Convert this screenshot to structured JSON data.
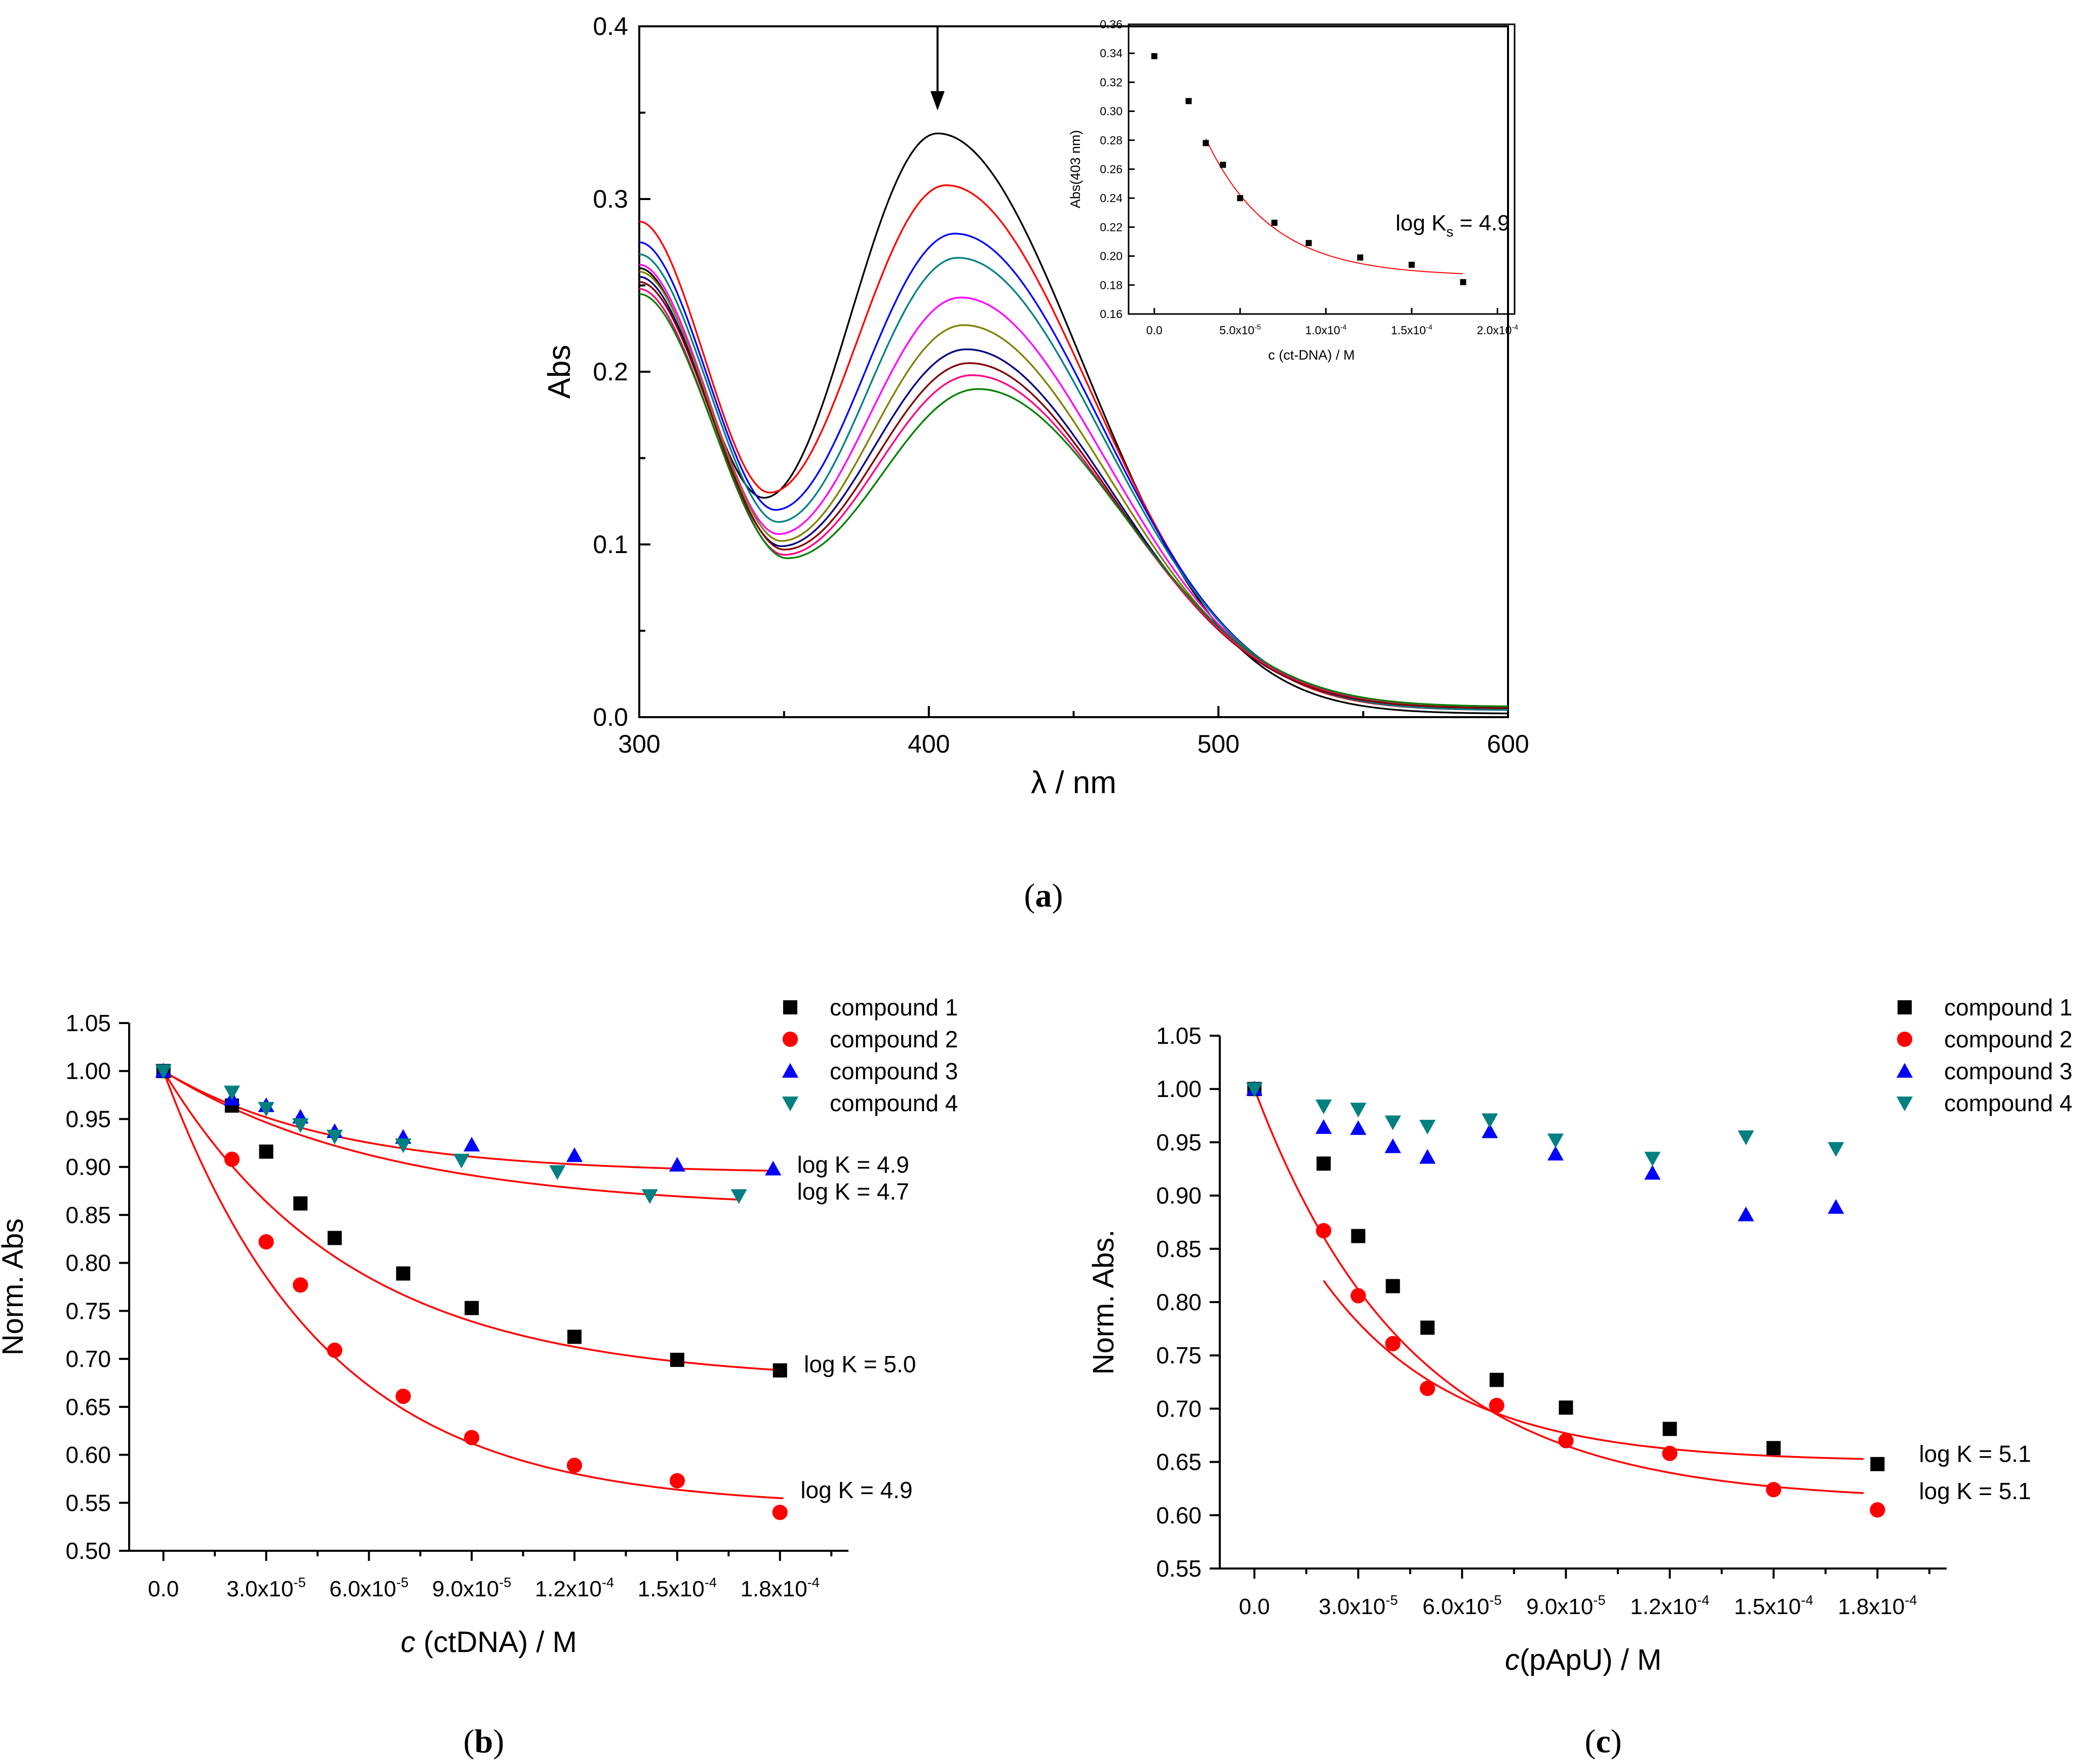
{
  "figure": {
    "caption_a": "(a)",
    "caption_b": "(b)",
    "caption_c": "(c)",
    "caption_letters": [
      "a",
      "b",
      "c"
    ]
  },
  "chart_data": [
    {
      "id": "a",
      "type": "line",
      "title": "",
      "xlabel": "λ / nm",
      "ylabel": "Abs",
      "xlim": [
        300,
        600
      ],
      "ylim": [
        0.0,
        0.4
      ],
      "xticks": [
        300,
        400,
        500,
        600
      ],
      "xtick_labels": [
        "300",
        "400",
        "500",
        "600"
      ],
      "yticks": [
        0.0,
        0.1,
        0.2,
        0.3,
        0.4
      ],
      "ytick_labels": [
        "0.0",
        "0.1",
        "0.2",
        "0.3",
        "0.4"
      ],
      "annotation": "downward arrow at 403 nm",
      "arrow_x": 403,
      "series_model": "spectra described by start value at 300 nm, minimum, peak, tail value at 600 nm",
      "series": [
        {
          "color": "#000000",
          "start300": 0.26,
          "min_x": 343,
          "min_y": 0.127,
          "peak_x": 403,
          "peak_y": 0.338,
          "end600": 0.002
        },
        {
          "color": "#ff0000",
          "start300": 0.287,
          "min_x": 345,
          "min_y": 0.13,
          "peak_x": 406,
          "peak_y": 0.308,
          "end600": 0.004
        },
        {
          "color": "#0000ff",
          "start300": 0.275,
          "min_x": 347,
          "min_y": 0.12,
          "peak_x": 409,
          "peak_y": 0.28,
          "end600": 0.004
        },
        {
          "color": "#008080",
          "start300": 0.268,
          "min_x": 348,
          "min_y": 0.113,
          "peak_x": 410,
          "peak_y": 0.266,
          "end600": 0.004
        },
        {
          "color": "#ff00ff",
          "start300": 0.262,
          "min_x": 348,
          "min_y": 0.106,
          "peak_x": 411,
          "peak_y": 0.243,
          "end600": 0.005
        },
        {
          "color": "#808000",
          "start300": 0.258,
          "min_x": 349,
          "min_y": 0.102,
          "peak_x": 412,
          "peak_y": 0.227,
          "end600": 0.005
        },
        {
          "color": "#000080",
          "start300": 0.255,
          "min_x": 349,
          "min_y": 0.099,
          "peak_x": 413,
          "peak_y": 0.213,
          "end600": 0.005
        },
        {
          "color": "#800000",
          "start300": 0.252,
          "min_x": 350,
          "min_y": 0.097,
          "peak_x": 414,
          "peak_y": 0.205,
          "end600": 0.005
        },
        {
          "color": "#ff0080",
          "start300": 0.248,
          "min_x": 350,
          "min_y": 0.094,
          "peak_x": 415,
          "peak_y": 0.198,
          "end600": 0.006
        },
        {
          "color": "#008000",
          "start300": 0.245,
          "min_x": 351,
          "min_y": 0.092,
          "peak_x": 417,
          "peak_y": 0.19,
          "end600": 0.006
        }
      ],
      "inset": {
        "type": "scatter",
        "xlabel": "c (ct-DNA) / M",
        "ylabel": "Abs(403 nm)",
        "annotation": "log K",
        "annotation_sub": "s",
        "annotation_value": " = 4.9",
        "xlim": [
          -1.5e-05,
          0.00021
        ],
        "ylim": [
          0.16,
          0.36
        ],
        "xticks": [
          0,
          5e-05,
          0.0001,
          0.00015,
          0.0002
        ],
        "xtick_mantissas": [
          "0.0",
          "5.0x10",
          "1.0x10",
          "1.5x10",
          "2.0x10"
        ],
        "xtick_exponents": [
          "",
          "-5",
          "-4",
          "-4",
          "-4"
        ],
        "yticks": [
          0.16,
          0.18,
          0.2,
          0.22,
          0.24,
          0.26,
          0.28,
          0.3,
          0.32,
          0.34,
          0.36
        ],
        "ytick_labels": [
          "0.16",
          "0.18",
          "0.20",
          "0.22",
          "0.24",
          "0.26",
          "0.28",
          "0.30",
          "0.32",
          "0.34",
          "0.36"
        ],
        "x": [
          0,
          2e-05,
          3e-05,
          4e-05,
          5e-05,
          7e-05,
          9e-05,
          0.00012,
          0.00015,
          0.00018
        ],
        "y": [
          0.338,
          0.307,
          0.278,
          0.263,
          0.24,
          0.223,
          0.209,
          0.199,
          0.194,
          0.182
        ],
        "fit_color": "#ff0000",
        "fit": {
          "x_start": 3e-05,
          "x_end": 0.00018,
          "y_inf": 0.186,
          "amplitude": 0.095,
          "decay": 3.8e-05
        }
      }
    },
    {
      "id": "b",
      "type": "scatter",
      "xlabel_italic": "c",
      "xlabel_rest": " (ctDNA) / M",
      "ylabel": "Norm. Abs",
      "xlim": [
        -1e-05,
        0.0002
      ],
      "ylim": [
        0.5,
        1.05
      ],
      "xticks": [
        0,
        3e-05,
        6e-05,
        9e-05,
        0.00012,
        0.00015,
        0.00018
      ],
      "xtick_mantissas": [
        "0.0",
        "3.0x10",
        "6.0x10",
        "9.0x10",
        "1.2x10",
        "1.5x10",
        "1.8x10"
      ],
      "xtick_exponents": [
        "",
        "-5",
        "-5",
        "-5",
        "-4",
        "-4",
        "-4"
      ],
      "yticks": [
        0.5,
        0.55,
        0.6,
        0.65,
        0.7,
        0.75,
        0.8,
        0.85,
        0.9,
        0.95,
        1.0,
        1.05
      ],
      "ytick_labels": [
        "0.50",
        "0.55",
        "0.60",
        "0.65",
        "0.70",
        "0.75",
        "0.80",
        "0.85",
        "0.90",
        "0.95",
        "1.00",
        "1.05"
      ],
      "legend": [
        "compound 1",
        "compound 2",
        "compound 3",
        "compound 4"
      ],
      "series": [
        {
          "name": "compound 1",
          "marker": "square",
          "color": "#000000",
          "x": [
            0,
            2e-05,
            3e-05,
            4e-05,
            5e-05,
            7e-05,
            9e-05,
            0.00012,
            0.00015,
            0.00018
          ],
          "y": [
            1.0,
            0.964,
            0.916,
            0.862,
            0.826,
            0.789,
            0.753,
            0.723,
            0.699,
            0.688
          ],
          "fit": {
            "y_inf": 0.676,
            "amplitude": 0.324,
            "decay": 5.5e-05
          }
        },
        {
          "name": "compound 2",
          "marker": "circle",
          "color": "#ff0000",
          "x": [
            2e-05,
            3e-05,
            4e-05,
            5e-05,
            7e-05,
            9e-05,
            0.00012,
            0.00015,
            0.00018
          ],
          "y": [
            0.908,
            0.822,
            0.777,
            0.709,
            0.661,
            0.618,
            0.589,
            0.573,
            0.54
          ],
          "fit": {
            "y_inf": 0.545,
            "amplitude": 0.455,
            "decay": 4.7e-05
          }
        },
        {
          "name": "compound 3",
          "marker": "triangle-up",
          "color": "#0000ff",
          "x": [
            0,
            2e-05,
            3e-05,
            4e-05,
            5e-05,
            7e-05,
            9e-05,
            0.00012,
            0.00015,
            0.000178
          ],
          "y": [
            1.0,
            0.971,
            0.964,
            0.952,
            0.937,
            0.931,
            0.923,
            0.912,
            0.902,
            0.898
          ],
          "fit": {
            "y_inf": 0.893,
            "amplitude": 0.107,
            "decay": 5e-05
          }
        },
        {
          "name": "compound 4",
          "marker": "triangle-down",
          "color": "#008080",
          "x": [
            0,
            2e-05,
            3e-05,
            4e-05,
            5e-05,
            7e-05,
            8.7e-05,
            0.000115,
            0.000142,
            0.000168
          ],
          "y": [
            1.0,
            0.978,
            0.961,
            0.944,
            0.932,
            0.923,
            0.907,
            0.895,
            0.87,
            0.87
          ],
          "fit": {
            "y_inf": 0.855,
            "amplitude": 0.145,
            "decay": 6.5e-05
          }
        }
      ],
      "fit_color": "#ff0000",
      "fit_x_end": 0.000178,
      "fit_x_ends": [
        0.000181,
        0.000181,
        0.000179,
        0.000168
      ],
      "logk_labels": [
        {
          "text": "log K = 4.9",
          "x": 0.000185,
          "y": 0.894
        },
        {
          "text": "log K = 4.7",
          "x": 0.000185,
          "y": 0.866
        },
        {
          "text": "log K = 5.0",
          "x": 0.000187,
          "y": 0.686
        },
        {
          "text": "log K = 4.9",
          "x": 0.000186,
          "y": 0.555
        }
      ]
    },
    {
      "id": "c",
      "type": "scatter",
      "xlabel_italic": "c",
      "xlabel_rest": "(pApU) / M",
      "ylabel": "Norm. Abs.",
      "xlim": [
        -1e-05,
        0.0002
      ],
      "ylim": [
        0.55,
        1.05
      ],
      "xticks": [
        0,
        3e-05,
        6e-05,
        9e-05,
        0.00012,
        0.00015,
        0.00018
      ],
      "xtick_mantissas": [
        "0.0",
        "3.0x10",
        "6.0x10",
        "9.0x10",
        "1.2x10",
        "1.5x10",
        "1.8x10"
      ],
      "xtick_exponents": [
        "",
        "-5",
        "-5",
        "-5",
        "-4",
        "-4",
        "-4"
      ],
      "yticks": [
        0.55,
        0.6,
        0.65,
        0.7,
        0.75,
        0.8,
        0.85,
        0.9,
        0.95,
        1.0,
        1.05
      ],
      "ytick_labels": [
        "0.55",
        "0.60",
        "0.65",
        "0.70",
        "0.75",
        "0.80",
        "0.85",
        "0.90",
        "0.95",
        "1.00",
        "1.05"
      ],
      "legend": [
        "compound 1",
        "compound 2",
        "compound 3",
        "compound 4"
      ],
      "series": [
        {
          "name": "compound 1",
          "marker": "square",
          "color": "#000000",
          "x": [
            0,
            2e-05,
            3e-05,
            4e-05,
            5e-05,
            7e-05,
            9e-05,
            0.00012,
            0.00015,
            0.00018
          ],
          "y": [
            1.0,
            0.93,
            0.862,
            0.815,
            0.776,
            0.727,
            0.701,
            0.681,
            0.663,
            0.648
          ],
          "fit": {
            "x_start": 2e-05,
            "y_inf": 0.65,
            "amplitude": 0.288,
            "decay": 3.8e-05
          }
        },
        {
          "name": "compound 2",
          "marker": "circle",
          "color": "#ff0000",
          "x": [
            2e-05,
            3e-05,
            4e-05,
            5e-05,
            7e-05,
            9e-05,
            0.00012,
            0.00015,
            0.00018
          ],
          "y": [
            0.867,
            0.806,
            0.761,
            0.719,
            0.703,
            0.67,
            0.658,
            0.624,
            0.605
          ],
          "fit": {
            "x_start": 0,
            "y_inf": 0.613,
            "amplitude": 0.387,
            "decay": 4.5e-05
          }
        },
        {
          "name": "compound 3",
          "marker": "triangle-up",
          "color": "#0000ff",
          "x": [
            0,
            2e-05,
            3e-05,
            4e-05,
            5e-05,
            6.8e-05,
            8.7e-05,
            0.000115,
            0.000142,
            0.000168
          ],
          "y": [
            1.0,
            0.964,
            0.963,
            0.946,
            0.936,
            0.96,
            0.939,
            0.921,
            0.882,
            0.889
          ]
        },
        {
          "name": "compound 4",
          "marker": "triangle-down",
          "color": "#008080",
          "x": [
            0,
            2e-05,
            3e-05,
            4e-05,
            5e-05,
            6.8e-05,
            8.7e-05,
            0.000115,
            0.000142,
            0.000168
          ],
          "y": [
            1.0,
            0.984,
            0.981,
            0.969,
            0.965,
            0.971,
            0.952,
            0.935,
            0.955,
            0.944
          ]
        }
      ],
      "fit_color": "#ff0000",
      "fit_x_end": 0.000176,
      "logk_labels": [
        {
          "text": "log K = 5.1",
          "x": 0.000192,
          "y": 0.65
        },
        {
          "text": "log K = 5.1",
          "x": 0.000192,
          "y": 0.615
        }
      ]
    }
  ]
}
